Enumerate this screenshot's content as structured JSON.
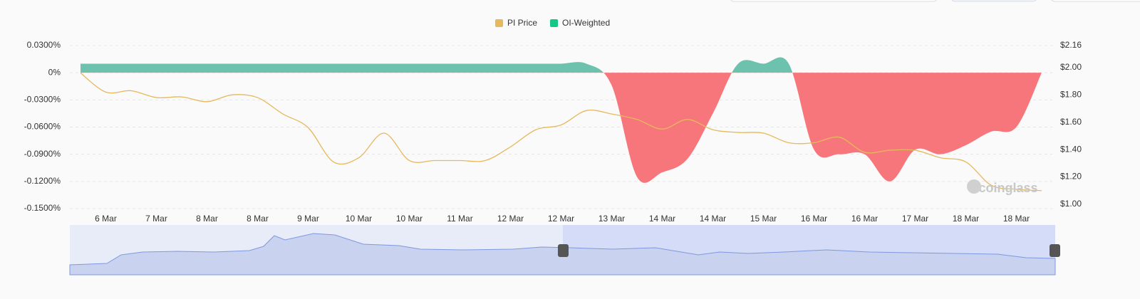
{
  "chart_data": {
    "type": "line-area",
    "legend_position": "top",
    "watermark": "coinglass",
    "categories": [
      null,
      "6 Mar",
      null,
      "7 Mar",
      null,
      "8 Mar",
      null,
      "8 Mar",
      null,
      "9 Mar",
      null,
      "10 Mar",
      null,
      "10 Mar",
      null,
      "11 Mar",
      null,
      "12 Mar",
      null,
      "12 Mar",
      null,
      "13 Mar",
      null,
      "14 Mar",
      null,
      "14 Mar",
      null,
      "15 Mar",
      null,
      "16 Mar",
      null,
      "16 Mar",
      null,
      "17 Mar",
      null,
      "18 Mar",
      null,
      "18 Mar",
      null
    ],
    "ylim": [
      -0.15,
      0.03
    ],
    "yticks": [
      {
        "value": 0.03,
        "label": "0.0300%"
      },
      {
        "value": 0,
        "label": "0%"
      },
      {
        "value": -0.03,
        "label": "-0.0300%"
      },
      {
        "value": -0.06,
        "label": "-0.0600%"
      },
      {
        "value": -0.09,
        "label": "-0.0900%"
      },
      {
        "value": -0.12,
        "label": "-0.1200%"
      },
      {
        "value": -0.15,
        "label": "-0.1500%"
      }
    ],
    "y2lim": [
      1.0,
      2.16
    ],
    "y2ticks": [
      {
        "value": 2.16,
        "label": "$2.16"
      },
      {
        "value": 2.0,
        "label": "$2.00"
      },
      {
        "value": 1.8,
        "label": "$1.80"
      },
      {
        "value": 1.6,
        "label": "$1.60"
      },
      {
        "value": 1.4,
        "label": "$1.40"
      },
      {
        "value": 1.2,
        "label": "$1.20"
      },
      {
        "value": 1.0,
        "label": "$1.00"
      }
    ],
    "grid": true,
    "positive_color": "#6cc2ac",
    "negative_color": "#f7767b",
    "series": [
      {
        "name": "PI Price",
        "color": "#e5b95c",
        "axis": "y2",
        "values": [
          1.96,
          1.82,
          1.83,
          1.78,
          1.785,
          1.75,
          1.8,
          1.78,
          1.66,
          1.56,
          1.31,
          1.34,
          1.52,
          1.32,
          1.32,
          1.32,
          1.32,
          1.42,
          1.545,
          1.58,
          1.685,
          1.66,
          1.62,
          1.55,
          1.62,
          1.545,
          1.525,
          1.52,
          1.45,
          1.45,
          1.49,
          1.38,
          1.395,
          1.395,
          1.34,
          1.31,
          1.14,
          1.11,
          1.1
        ]
      },
      {
        "name": "OI-Weighted",
        "color": "#16c784",
        "values": [
          0.01,
          0.01,
          0.01,
          0.01,
          0.01,
          0.01,
          0.01,
          0.01,
          0.01,
          0.01,
          0.01,
          0.01,
          0.01,
          0.01,
          0.01,
          0.01,
          0.01,
          0.01,
          0.01,
          0.01,
          0.01,
          -0.014,
          -0.115,
          -0.11,
          -0.095,
          -0.045,
          0.01,
          0.01,
          0.01,
          -0.085,
          -0.09,
          -0.09,
          -0.12,
          -0.085,
          -0.09,
          -0.08,
          -0.065,
          -0.06,
          0
        ]
      }
    ]
  }
}
